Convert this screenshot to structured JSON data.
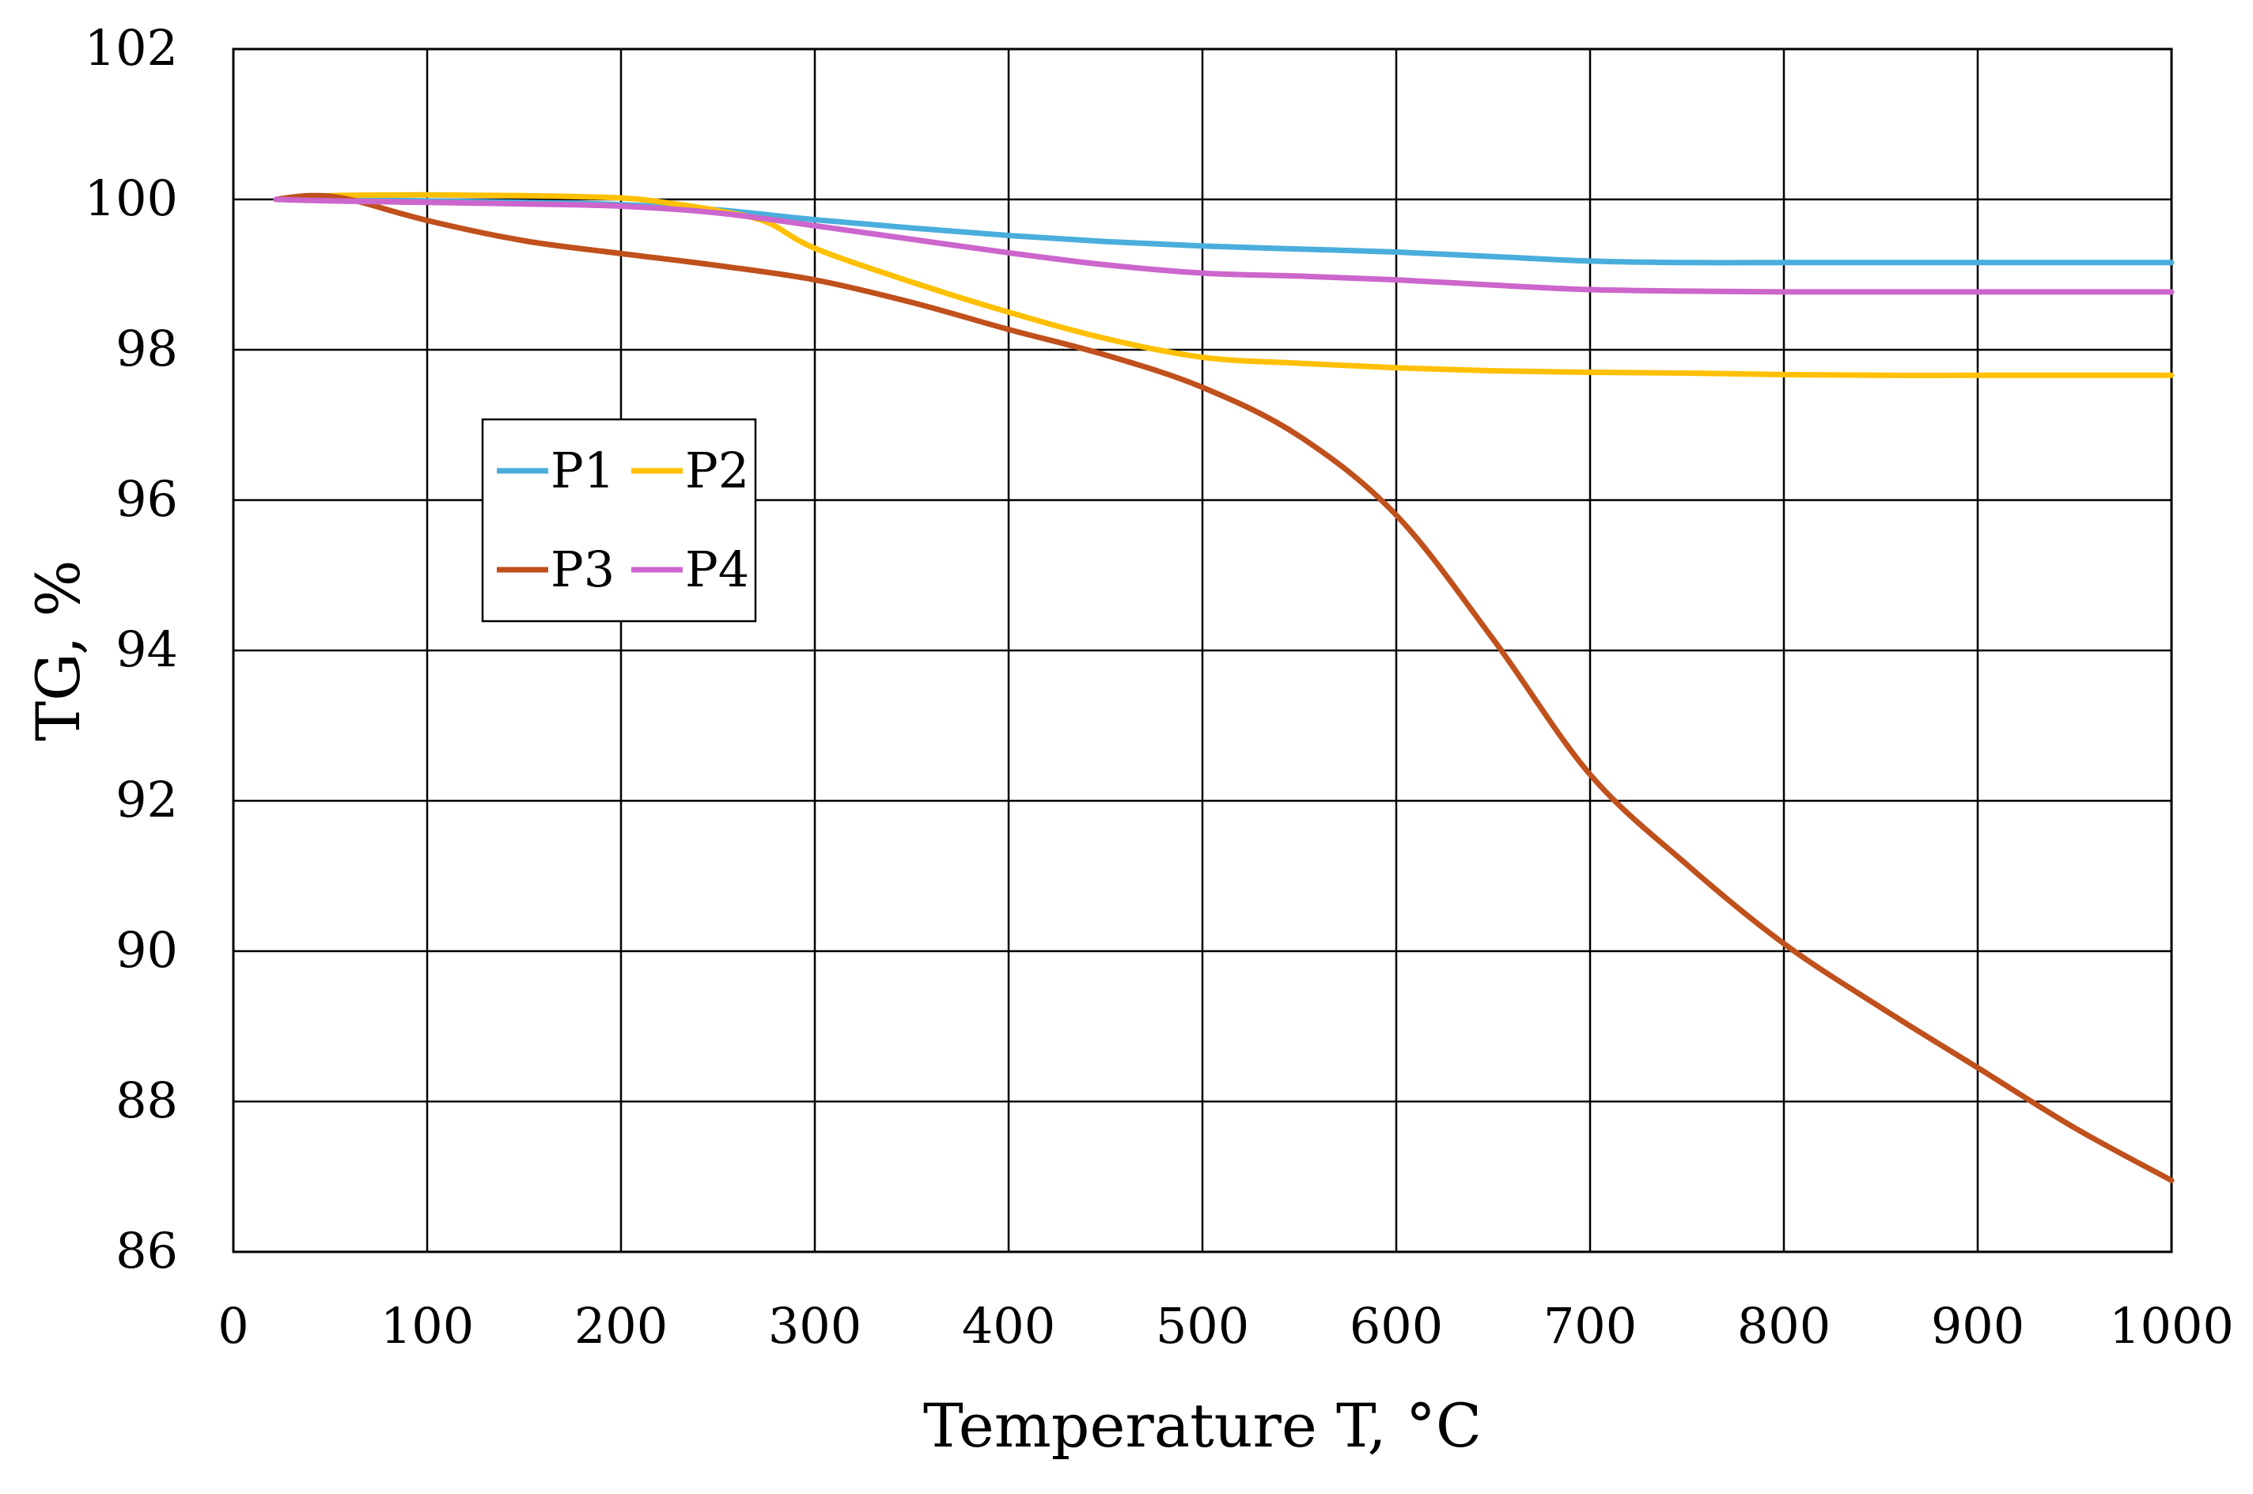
{
  "chart_data": {
    "type": "line",
    "title": "",
    "xlabel": "Temperature T, °C",
    "ylabel": "TG, %",
    "xlim": [
      0,
      1000
    ],
    "ylim": [
      86,
      102
    ],
    "xticks": [
      "0",
      "100",
      "200",
      "300",
      "400",
      "500",
      "600",
      "700",
      "800",
      "900",
      "1000"
    ],
    "yticks": [
      "86",
      "88",
      "90",
      "92",
      "94",
      "96",
      "98",
      "100",
      "102"
    ],
    "grid": true,
    "legend_position": "upper-left, inside plot",
    "series": [
      {
        "name": "P1",
        "color": "#4AAEDC",
        "x": [
          22,
          50,
          100,
          150,
          200,
          250,
          300,
          350,
          400,
          450,
          500,
          550,
          600,
          650,
          700,
          750,
          800,
          850,
          900,
          950,
          1000
        ],
        "y": [
          100.0,
          100.0,
          99.98,
          99.96,
          99.93,
          99.86,
          99.73,
          99.62,
          99.52,
          99.44,
          99.38,
          99.34,
          99.3,
          99.24,
          99.18,
          99.16,
          99.16,
          99.16,
          99.16,
          99.16,
          99.16
        ]
      },
      {
        "name": "P2",
        "color": "#FFC000",
        "x": [
          22,
          50,
          100,
          150,
          200,
          225,
          250,
          275,
          300,
          350,
          400,
          450,
          500,
          550,
          600,
          650,
          700,
          750,
          800,
          850,
          900,
          950,
          1000
        ],
        "y": [
          100.0,
          100.05,
          100.06,
          100.05,
          100.02,
          99.95,
          99.85,
          99.7,
          99.35,
          98.9,
          98.5,
          98.15,
          97.9,
          97.82,
          97.76,
          97.72,
          97.7,
          97.69,
          97.67,
          97.66,
          97.66,
          97.66,
          97.66
        ]
      },
      {
        "name": "P3",
        "color": "#C0501C",
        "x": [
          22,
          40,
          60,
          100,
          150,
          200,
          250,
          300,
          350,
          400,
          450,
          500,
          550,
          600,
          650,
          700,
          750,
          800,
          850,
          900,
          950,
          1000
        ],
        "y": [
          100.0,
          100.05,
          100.0,
          99.72,
          99.45,
          99.28,
          99.12,
          98.93,
          98.63,
          98.27,
          97.93,
          97.5,
          96.85,
          95.8,
          94.15,
          92.35,
          91.15,
          90.1,
          89.25,
          88.45,
          87.65,
          86.95
        ]
      },
      {
        "name": "P4",
        "color": "#CC66CC",
        "x": [
          22,
          50,
          100,
          150,
          200,
          250,
          300,
          350,
          400,
          450,
          500,
          550,
          600,
          650,
          700,
          750,
          800,
          850,
          900,
          950,
          1000
        ],
        "y": [
          100.0,
          99.98,
          99.96,
          99.94,
          99.91,
          99.82,
          99.65,
          99.47,
          99.29,
          99.13,
          99.02,
          98.98,
          98.93,
          98.86,
          98.8,
          98.78,
          98.77,
          98.77,
          98.77,
          98.77,
          98.77
        ]
      }
    ]
  }
}
